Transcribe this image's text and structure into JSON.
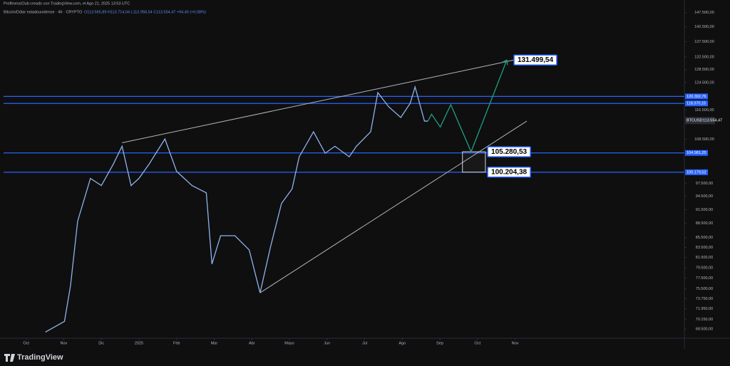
{
  "chart_data": {
    "type": "line",
    "watermark": "ProfitnessClub creado con TradingView.com, el Ago 21, 2025 13:53 UTC",
    "title": "Bitcoin/Dólar estadounidense · 4h · CRYPTO",
    "ohlc": "O113.565,89 H113.714,04 L112.958,54 C113.554,47 +94,40 (+0,08%)",
    "brand": "TradingView",
    "log_scale": true,
    "xlim": [
      -0.6,
      17.5
    ],
    "ylim": [
      67000,
      150000
    ],
    "xticks": [
      {
        "value": 0,
        "label": "Oct"
      },
      {
        "value": 1,
        "label": "Nov"
      },
      {
        "value": 2,
        "label": "Dic"
      },
      {
        "value": 3,
        "label": "2025"
      },
      {
        "value": 4,
        "label": "Feb"
      },
      {
        "value": 5,
        "label": "Mar"
      },
      {
        "value": 6,
        "label": "Abr"
      },
      {
        "value": 7,
        "label": "Mayo"
      },
      {
        "value": 8,
        "label": "Jun"
      },
      {
        "value": 9,
        "label": "Jul"
      },
      {
        "value": 10,
        "label": "Ago"
      },
      {
        "value": 11,
        "label": "Sep"
      },
      {
        "value": 12,
        "label": "Oct"
      },
      {
        "value": 13,
        "label": "Nov"
      }
    ],
    "yticks": [
      {
        "value": 147500,
        "label": "147.500,00"
      },
      {
        "value": 142500,
        "label": "142.500,00"
      },
      {
        "value": 137500,
        "label": "137.500,00"
      },
      {
        "value": 132500,
        "label": "132.500,00"
      },
      {
        "value": 128500,
        "label": "128.500,00"
      },
      {
        "value": 124500,
        "label": "124.500,00"
      },
      {
        "value": 116500,
        "label": "116.500,00"
      },
      {
        "value": 108500,
        "label": "108.500,00"
      },
      {
        "value": 97500,
        "label": "97.500,00"
      },
      {
        "value": 94500,
        "label": "94.500,00"
      },
      {
        "value": 91500,
        "label": "91.500,00"
      },
      {
        "value": 88500,
        "label": "88.500,00"
      },
      {
        "value": 85500,
        "label": "85.500,00"
      },
      {
        "value": 83500,
        "label": "83.500,00"
      },
      {
        "value": 81500,
        "label": "81.500,00"
      },
      {
        "value": 79500,
        "label": "79.500,00"
      },
      {
        "value": 77500,
        "label": "77.500,00"
      },
      {
        "value": 75500,
        "label": "75.500,00"
      },
      {
        "value": 73750,
        "label": "73.750,00"
      },
      {
        "value": 71950,
        "label": "71.950,00"
      },
      {
        "value": 70150,
        "label": "70.150,00"
      },
      {
        "value": 68500,
        "label": "68.500,00"
      }
    ],
    "series": [
      {
        "name": "BTCUSD",
        "color": "#8fb2ee",
        "x": [
          0.51,
          1.02,
          1.18,
          1.37,
          1.71,
          2.0,
          2.32,
          2.55,
          2.79,
          3.0,
          3.27,
          3.69,
          4.0,
          4.41,
          4.79,
          4.94,
          5.17,
          5.55,
          5.93,
          6.22,
          6.5,
          6.79,
          7.07,
          7.26,
          7.64,
          7.95,
          8.21,
          8.59,
          8.78,
          9.16,
          9.35,
          9.64,
          9.96,
          10.21,
          10.34,
          10.59,
          10.68
        ],
        "values": [
          68000,
          69800,
          76100,
          89000,
          98700,
          97000,
          102200,
          106700,
          97000,
          98700,
          102200,
          108600,
          100400,
          97000,
          95300,
          80200,
          85900,
          85900,
          83000,
          74800,
          83700,
          92900,
          96200,
          104000,
          110500,
          104900,
          106700,
          104000,
          106700,
          110500,
          121500,
          117400,
          114400,
          118400,
          123200,
          113400,
          113400
        ]
      }
    ],
    "hlines": [
      {
        "value": 120392.76,
        "label": "120.392,76"
      },
      {
        "value": 118370.15,
        "label": "118.370,15"
      },
      {
        "value": 104981.25,
        "label": "104.981,25"
      },
      {
        "value": 100179.52,
        "label": "100.179,52"
      }
    ],
    "hline_color": "#2962ff",
    "symbol": "BTCUSD",
    "last_price": {
      "value": 113554.47,
      "label": "113.554,47"
    },
    "trendlines": [
      {
        "x": [
          2.55,
          12.97
        ],
        "values": [
          107600,
          131499.54
        ]
      },
      {
        "x": [
          6.22,
          13.31
        ],
        "values": [
          74800,
          113400
        ]
      }
    ],
    "trendline_color": "#b2b5be",
    "projection": {
      "color": "#1f9e86",
      "x": [
        10.68,
        10.78,
        11.01,
        11.29,
        11.83,
        12.78
      ],
      "values": [
        113400,
        115300,
        111800,
        118000,
        105280.53,
        131499.54
      ]
    },
    "box": {
      "x": [
        11.6,
        12.21
      ],
      "values": [
        100204.38,
        105280.53
      ]
    },
    "callouts": [
      {
        "x": 12.97,
        "value": 131499.54,
        "label": "131.499,54"
      },
      {
        "x": 12.27,
        "value": 105280.53,
        "label": "105.280,53"
      },
      {
        "x": 12.27,
        "value": 100204.38,
        "label": "100.204,38"
      }
    ]
  }
}
